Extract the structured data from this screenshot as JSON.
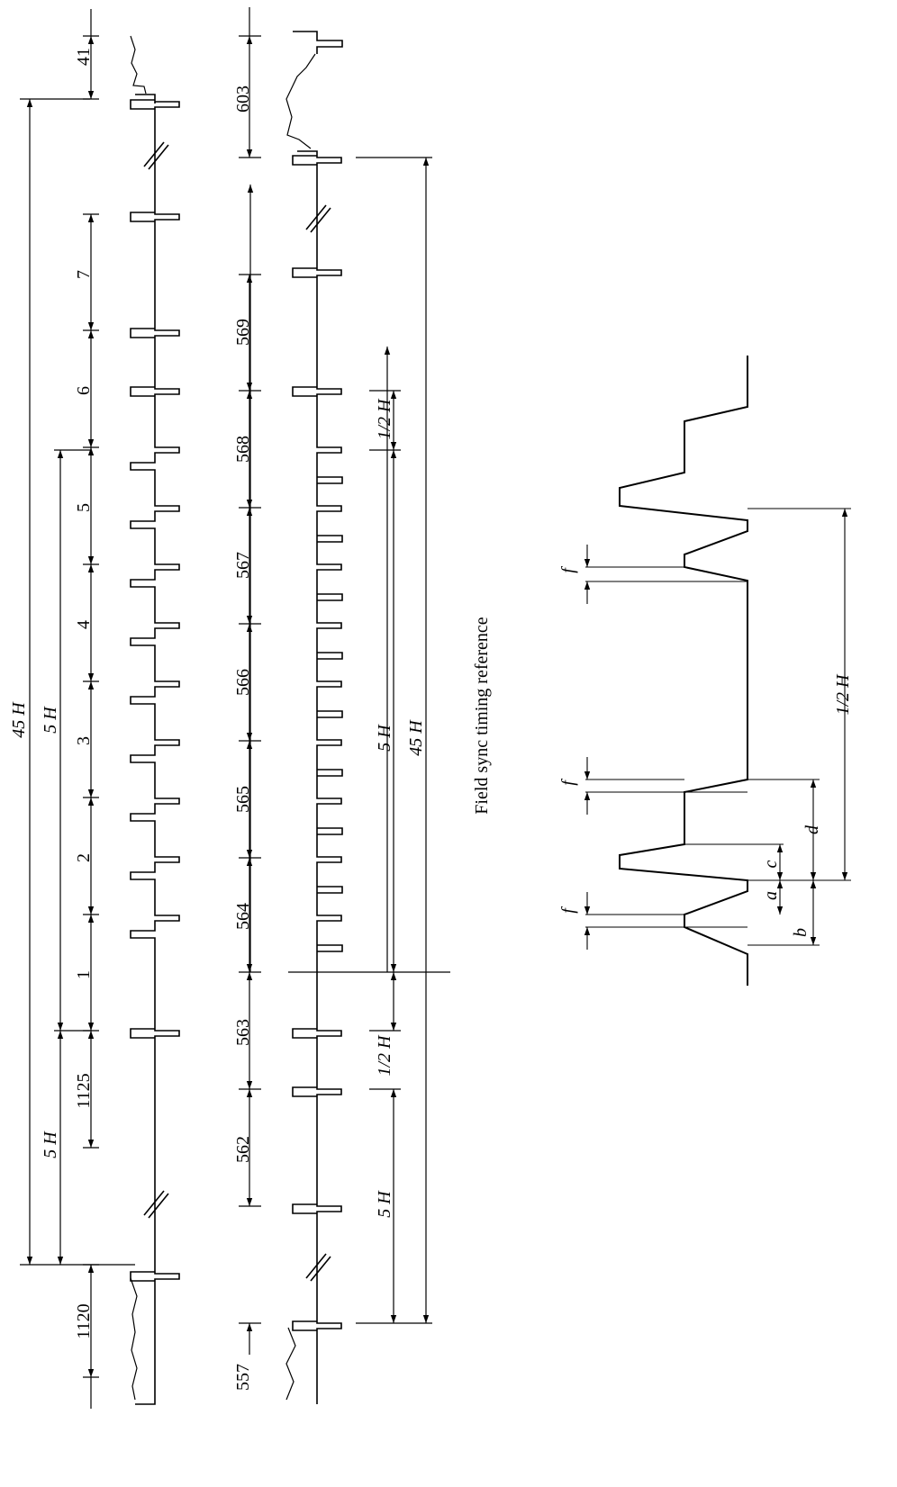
{
  "caption": "Field sync timing reference",
  "left_waveform": {
    "line_labels": [
      "41",
      "7",
      "6",
      "5",
      "4",
      "3",
      "2",
      "1",
      "1125",
      "1120"
    ],
    "dimensions": [
      "45 H",
      "5 H",
      "5 H"
    ]
  },
  "middle_waveform": {
    "line_labels": [
      "603",
      "569",
      "568",
      "567",
      "566",
      "565",
      "564",
      "563",
      "562",
      "557"
    ],
    "dimensions": [
      "1/2 H",
      "5 H",
      "45 H",
      "1/2 H",
      "5 H"
    ]
  },
  "detail": {
    "labels": [
      "f",
      "f",
      "f",
      "a",
      "b",
      "c",
      "d"
    ],
    "dimension": "1/2 H"
  }
}
